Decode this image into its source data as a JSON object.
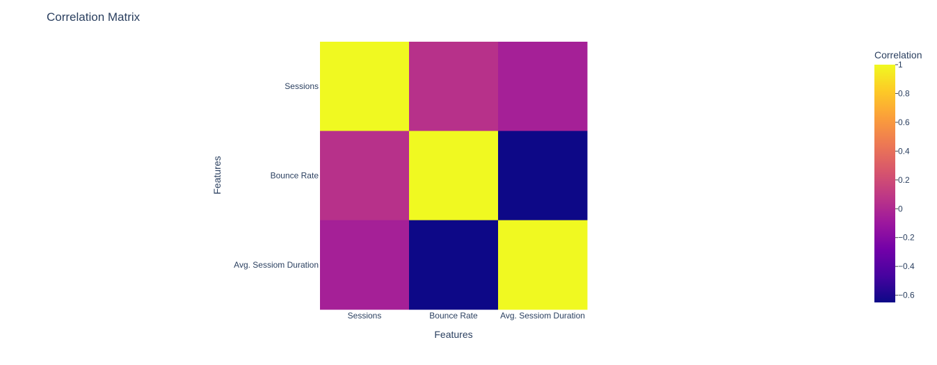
{
  "chart_data": {
    "type": "heatmap",
    "title": "Correlation Matrix",
    "xlabel": "Features",
    "ylabel": "Features",
    "x": [
      "Sessions",
      "Bounce Rate",
      "Avg. Sessiom Duration"
    ],
    "y": [
      "Sessions",
      "Bounce Rate",
      "Avg. Sessiom Duration"
    ],
    "z": [
      [
        1.0,
        0.05,
        -0.05
      ],
      [
        0.05,
        1.0,
        -0.65
      ],
      [
        -0.05,
        -0.65,
        1.0
      ]
    ],
    "colorscale": "plasma",
    "zmin": -0.65,
    "zmax": 1.0,
    "colorbar": {
      "title": "Correlation",
      "ticks": [
        1,
        0.8,
        0.6,
        0.4,
        0.2,
        0,
        -0.2,
        -0.4,
        -0.6
      ],
      "tick_labels": [
        "1",
        "0.8",
        "0.6",
        "0.4",
        "0.2",
        "0",
        "−0.2",
        "−0.4",
        "−0.6"
      ]
    }
  }
}
